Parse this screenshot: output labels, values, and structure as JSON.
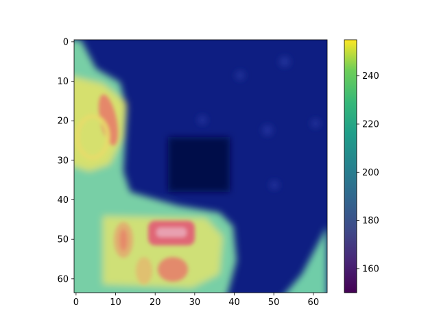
{
  "chart_data": {
    "type": "heatmap",
    "title": "",
    "xlabel": "",
    "ylabel": "",
    "grid": false,
    "image_size": [
      64,
      64
    ],
    "xlim": [
      -0.5,
      63.5
    ],
    "ylim": [
      63.5,
      -0.5
    ],
    "x_ticks": [
      0,
      10,
      20,
      30,
      40,
      50,
      60
    ],
    "y_ticks": [
      0,
      10,
      20,
      30,
      40,
      50,
      60
    ],
    "x_tick_labels": [
      "0",
      "10",
      "20",
      "30",
      "40",
      "50",
      "60"
    ],
    "y_tick_labels": [
      "0",
      "10",
      "20",
      "30",
      "40",
      "50",
      "60"
    ],
    "colorbar": {
      "colormap": "viridis",
      "range": [
        150,
        255
      ],
      "ticks": [
        160,
        180,
        200,
        220,
        240
      ],
      "tick_labels": [
        "160",
        "180",
        "200",
        "220",
        "240"
      ]
    },
    "colors": {
      "background": "#0e1e82",
      "dark_patch": "#04084a",
      "cool_region": "#6fcda8",
      "warm_region": "#d8e070",
      "hot_region": "#e58a6a",
      "hottest": "#e66a7a"
    },
    "features": [
      {
        "name": "left warm band",
        "x_range": [
          0,
          12
        ],
        "y_range": [
          12,
          40
        ]
      },
      {
        "name": "hot streak upper-left",
        "x_range": [
          6,
          11
        ],
        "y_range": [
          14,
          32
        ]
      },
      {
        "name": "dark square",
        "x_range": [
          24,
          38
        ],
        "y_range": [
          26,
          38
        ]
      },
      {
        "name": "hot blob 1",
        "x_range": [
          10,
          15
        ],
        "y_range": [
          45,
          54
        ]
      },
      {
        "name": "hottest rectangle",
        "x_range": [
          19,
          30
        ],
        "y_range": [
          46,
          51
        ]
      },
      {
        "name": "hot blob 2",
        "x_range": [
          21,
          28
        ],
        "y_range": [
          54,
          61
        ]
      },
      {
        "name": "warm lower-right corner",
        "x_range": [
          54,
          63
        ],
        "y_range": [
          50,
          63
        ]
      }
    ]
  }
}
